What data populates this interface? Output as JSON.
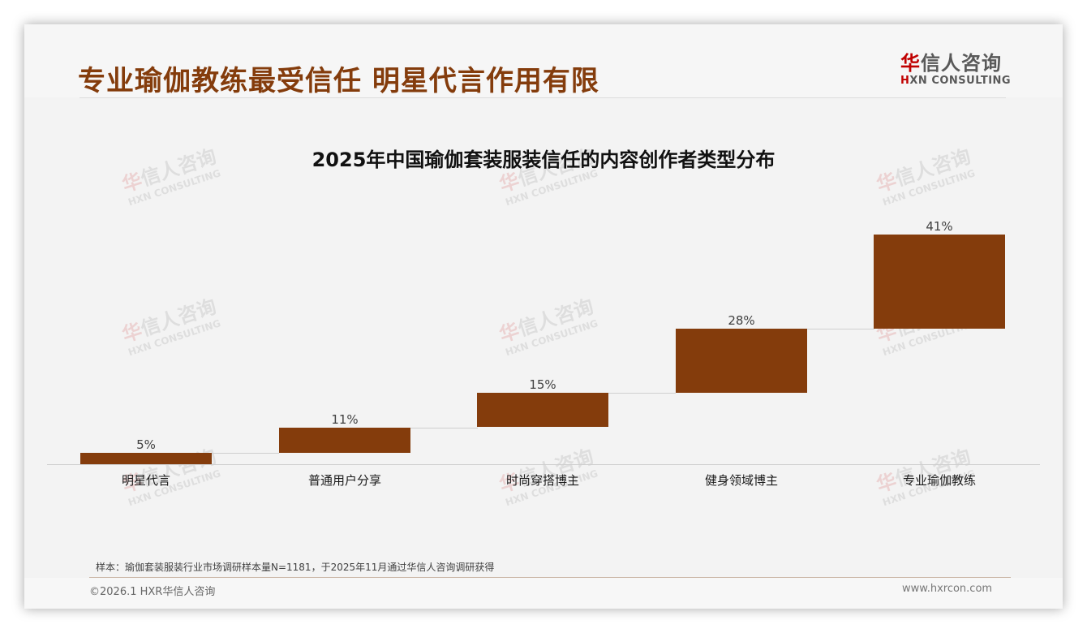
{
  "header": {
    "title": "专业瑜伽教练最受信任 明星代言作用有限",
    "logo_cn_first": "华",
    "logo_cn_rest": "信人咨询",
    "logo_en_first": "H",
    "logo_en_rest": "XN CONSULTING"
  },
  "colors": {
    "title": "#843c0c",
    "bar": "#843c0c",
    "logo_accent": "#c00000",
    "background": "#f3f3f3"
  },
  "chart_data": {
    "type": "bar",
    "subtype": "waterfall",
    "title": "2025年中国瑜伽套装服装信任的内容创作者类型分布",
    "categories": [
      "明星代言",
      "普通用户分享",
      "时尚穿搭博主",
      "健身领域博主",
      "专业瑜伽教练"
    ],
    "values": [
      5,
      11,
      15,
      28,
      41
    ],
    "value_labels": [
      "5%",
      "11%",
      "15%",
      "28%",
      "41%"
    ],
    "unit": "%",
    "xlabel": "",
    "ylabel": "",
    "ylim": [
      0,
      100
    ],
    "grid": false,
    "legend": null
  },
  "watermark": {
    "cn_first": "华",
    "cn_rest": "信人咨询",
    "en": "HXN CONSULTING"
  },
  "footer": {
    "sample_note": "样本：瑜伽套装服装行业市场调研样本量N=1181，于2025年11月通过华信人咨询调研获得",
    "copyright": "©2026.1 HXR华信人咨询",
    "website": "www.hxrcon.com"
  }
}
